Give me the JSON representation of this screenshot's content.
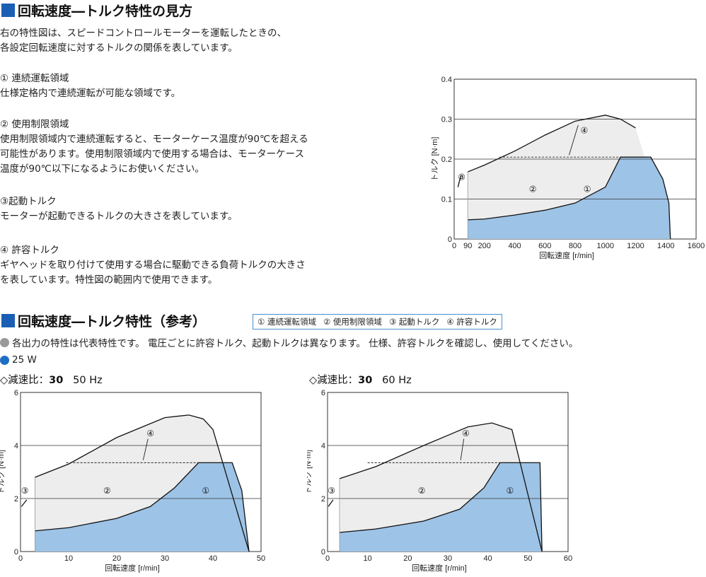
{
  "section1": {
    "title": "回転速度―トルク特性の見方",
    "intro": [
      "右の特性図は、スピードコントロールモーターを運転したときの、",
      "各設定回転速度に対するトルクの関係を表しています。"
    ],
    "items": [
      {
        "title": "① 連続運転領域",
        "lines": [
          "仕様定格内で連続運転が可能な領域です。"
        ]
      },
      {
        "title": "② 使用制限領域",
        "lines": [
          "使用制限領域内で連続運転すると、モーターケース温度が90℃を超える",
          "可能性があります。使用制限領域内で使用する場合は、モーターケース",
          "温度が90℃以下になるようにお使いください。"
        ]
      },
      {
        "title": "③起動トルク",
        "lines": [
          "モーターが起動できるトルクの大きさを表しています。"
        ]
      },
      {
        "title": "④ 許容トルク",
        "lines": [
          "ギヤヘッドを取り付けて使用する場合に駆動できる負荷トルクの大きさ",
          "を表しています。特性図の範囲内で使用できます。"
        ]
      }
    ]
  },
  "section2": {
    "title": "回転速度―トルク特性（参考）",
    "legend": [
      "① 連続運転領域",
      "② 使用制限領域",
      "③ 起動トルク",
      "④ 許容トルク"
    ],
    "note": "各出力の特性は代表特性です。 電圧ごとに許容トルク、起動トルクは異なります。 仕様、許容トルクを確認し、使用してください。",
    "output": "25 W",
    "charts": [
      {
        "prefix": "◇減速比：",
        "ratio": "30",
        "freq": "50 Hz"
      },
      {
        "prefix": "◇減速比：",
        "ratio": "30",
        "freq": "60 Hz"
      }
    ]
  },
  "colors": {
    "accent": "#1a5fb4",
    "continuous": "#9dc3e6",
    "limited": "#ededed",
    "legend_border": "#4a8fd0",
    "note_dot": "#999999",
    "output_dot": "#1e6fc4"
  },
  "chart_data": [
    {
      "type": "area",
      "xlabel": "回転速度 [r/min]",
      "ylabel": "トルク [N·m]",
      "x_ticks": [
        "0",
        "90",
        "200",
        "400",
        "600",
        "800",
        "1000",
        "1200",
        "1400",
        "1600"
      ],
      "y_ticks": [
        "0",
        "0.1",
        "0.2",
        "0.3",
        "0.4"
      ],
      "xlim": [
        0,
        1600
      ],
      "ylim": [
        0,
        0.4
      ],
      "region_labels": [
        "①",
        "②",
        "③",
        "④"
      ],
      "series": [
        {
          "name": "①",
          "role": "continuous",
          "x": [
            90,
            200,
            400,
            600,
            800,
            1000,
            1100,
            1300,
            1380,
            1420,
            1430
          ],
          "y": [
            0.048,
            0.05,
            0.06,
            0.072,
            0.09,
            0.13,
            0.205,
            0.205,
            0.15,
            0.09,
            0
          ]
        },
        {
          "name": "②",
          "role": "limit",
          "x": [
            90,
            200,
            400,
            600,
            800,
            1000,
            1100,
            1200
          ],
          "y": [
            0.168,
            0.185,
            0.22,
            0.26,
            0.295,
            0.31,
            0.3,
            0.278
          ]
        },
        {
          "name": "④",
          "role": "permissible",
          "x": [
            300,
            1300
          ],
          "y": [
            0.205,
            0.205
          ]
        }
      ]
    },
    {
      "type": "area",
      "xlabel": "回転速度 [r/min]",
      "ylabel": "トルク [N·m]",
      "x_ticks": [
        "0",
        "10",
        "20",
        "30",
        "40",
        "50"
      ],
      "y_ticks": [
        "0",
        "2",
        "4",
        "6"
      ],
      "xlim": [
        0,
        50
      ],
      "ylim": [
        0,
        6
      ],
      "region_labels": [
        "①",
        "②",
        "③",
        "④"
      ],
      "series": [
        {
          "name": "①",
          "role": "continuous",
          "x": [
            3,
            10,
            20,
            27,
            32,
            37,
            44,
            46,
            47.5
          ],
          "y": [
            0.78,
            0.9,
            1.25,
            1.7,
            2.4,
            3.35,
            3.35,
            2.3,
            0
          ]
        },
        {
          "name": "②",
          "role": "limit",
          "x": [
            3,
            10,
            20,
            30,
            35,
            38,
            40,
            47.5
          ],
          "y": [
            2.8,
            3.3,
            4.3,
            5.05,
            5.15,
            5.0,
            4.6,
            0
          ]
        },
        {
          "name": "④",
          "role": "permissible",
          "x": [
            9.5,
            44
          ],
          "y": [
            3.35,
            3.35
          ]
        }
      ]
    },
    {
      "type": "area",
      "xlabel": "回転速度 [r/min]",
      "ylabel": "トルク [N·m]",
      "x_ticks": [
        "0",
        "10",
        "20",
        "30",
        "40",
        "50",
        "60"
      ],
      "y_ticks": [
        "0",
        "2",
        "4",
        "6"
      ],
      "xlim": [
        0,
        60
      ],
      "ylim": [
        0,
        6
      ],
      "region_labels": [
        "①",
        "②",
        "③",
        "④"
      ],
      "series": [
        {
          "name": "①",
          "role": "continuous",
          "x": [
            3,
            12,
            24,
            33,
            39,
            43,
            53,
            53.5
          ],
          "y": [
            0.72,
            0.85,
            1.15,
            1.6,
            2.4,
            3.35,
            3.35,
            0
          ]
        },
        {
          "name": "②",
          "role": "limit",
          "x": [
            3,
            12,
            24,
            35,
            41,
            46,
            53.5
          ],
          "y": [
            2.75,
            3.2,
            4.0,
            4.7,
            4.85,
            4.6,
            0
          ]
        },
        {
          "name": "④",
          "role": "permissible",
          "x": [
            10,
            53
          ],
          "y": [
            3.35,
            3.35
          ]
        }
      ]
    }
  ]
}
